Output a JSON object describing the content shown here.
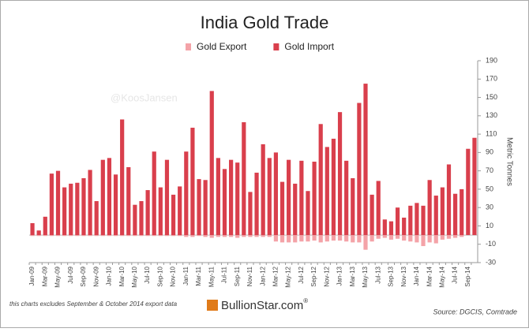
{
  "chart_data": {
    "type": "bar",
    "title": "India Gold Trade",
    "watermark": "@KoosJansen",
    "y_label": "Metric Tonnes",
    "categories": [
      "Jan-09",
      null,
      "Mar-09",
      null,
      "May-09",
      null,
      "Jul-09",
      null,
      "Sep-09",
      null,
      "Nov-09",
      null,
      "Jan-10",
      null,
      "Mar-10",
      null,
      "May-10",
      null,
      "Jul-10",
      null,
      "Sep-10",
      null,
      "Nov-10",
      null,
      "Jan-11",
      null,
      "Mar-11",
      null,
      "May-11",
      null,
      "Jul-11",
      null,
      "Sep-11",
      null,
      "Nov-11",
      null,
      "Jan-12",
      null,
      "Mar-12",
      null,
      "May-12",
      null,
      "Jul-12",
      null,
      "Sep-12",
      null,
      "Nov-12",
      null,
      "Jan-13",
      null,
      "Mar-13",
      null,
      "May-13",
      null,
      "Jul-13",
      null,
      "Sep-13",
      null,
      "Nov-13",
      null,
      "Jan-14",
      null,
      "Mar-14",
      null,
      "May-14",
      null,
      "Jul-14",
      null,
      "Sep-14",
      null
    ],
    "series": [
      {
        "name": "Gold Export",
        "color": "#f4a3a8",
        "values": [
          -1,
          -1,
          -1,
          -1,
          -1,
          -1,
          -1,
          -1,
          -1,
          -1,
          -1,
          -1,
          -1,
          -1,
          -1,
          -1,
          -1,
          -1,
          -1,
          -1,
          -1,
          -1,
          -1,
          -1,
          -2,
          -2,
          -1,
          -2,
          -3,
          -2,
          -2,
          -2,
          -3,
          -2,
          -2,
          -2,
          -2,
          -2,
          -7,
          -8,
          -8,
          -8,
          -7,
          -7,
          -6,
          -8,
          -7,
          -6,
          -6,
          -7,
          -8,
          -8,
          -16,
          -7,
          -4,
          -3,
          -5,
          -4,
          -6,
          -7,
          -8,
          -12,
          -8,
          -9,
          -5,
          -4,
          -3,
          -2,
          null,
          null
        ]
      },
      {
        "name": "Gold Import",
        "color": "#d93f4c",
        "values": [
          13,
          5,
          20,
          67,
          70,
          52,
          56,
          57,
          62,
          71,
          37,
          82,
          84,
          66,
          126,
          74,
          33,
          37,
          49,
          91,
          52,
          82,
          44,
          53,
          91,
          117,
          61,
          60,
          157,
          84,
          72,
          82,
          79,
          123,
          47,
          68,
          99,
          84,
          90,
          58,
          82,
          56,
          81,
          48,
          80,
          121,
          96,
          105,
          134,
          81,
          62,
          144,
          165,
          44,
          59,
          17,
          15,
          30,
          19,
          32,
          35,
          32,
          60,
          43,
          52,
          77,
          45,
          50,
          94,
          106
        ]
      }
    ],
    "ylim": [
      -30,
      190
    ],
    "yticks": [
      -30,
      -10,
      10,
      30,
      50,
      70,
      90,
      110,
      130,
      150,
      170,
      190
    ],
    "footnote": "this charts excludes September & October 2014 export data",
    "logo": "BullionStar.com",
    "logo_mark": "®",
    "source": "Source: DGCIS, Comtrade"
  }
}
